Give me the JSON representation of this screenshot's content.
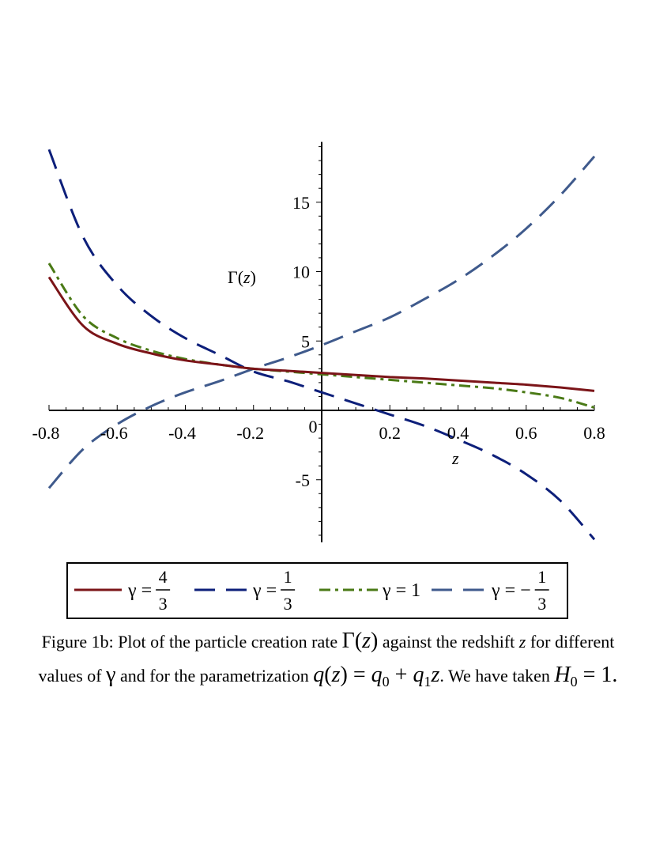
{
  "chart_data": {
    "type": "line",
    "xlabel": "z",
    "ylabel": "Γ(z)",
    "xlim": [
      -0.8,
      0.8
    ],
    "ylim": [
      -9.5,
      19
    ],
    "x_ticks": [
      "-0.8",
      "-0.6",
      "-0.4",
      "-0.2",
      "0",
      "0.2",
      "0.4",
      "0.6",
      "0.8"
    ],
    "y_ticks": [
      "-5",
      "5",
      "10",
      "15"
    ],
    "x": [
      -0.8,
      -0.7,
      -0.6,
      -0.5,
      -0.4,
      -0.3,
      -0.2,
      -0.1,
      0,
      0.1,
      0.2,
      0.3,
      0.4,
      0.5,
      0.6,
      0.7,
      0.8
    ],
    "series": [
      {
        "name": "γ = 4/3",
        "color": "#7b1418",
        "dash": "solid",
        "values": [
          9.6,
          6.1,
          4.8,
          4.1,
          3.6,
          3.3,
          3.0,
          2.85,
          2.7,
          2.55,
          2.4,
          2.3,
          2.15,
          2.0,
          1.85,
          1.65,
          1.4
        ]
      },
      {
        "name": "γ = 1/3",
        "color": "#0d1f7a",
        "dash": "long-dash",
        "values": [
          18.8,
          12.5,
          9.0,
          6.8,
          5.2,
          4.0,
          2.8,
          2.1,
          1.3,
          0.5,
          -0.3,
          -1.1,
          -2.1,
          -3.2,
          -4.6,
          -6.5,
          -9.3
        ]
      },
      {
        "name": "γ = 1",
        "color": "#4a7a16",
        "dash": "dash-dot",
        "values": [
          10.6,
          6.8,
          5.2,
          4.3,
          3.7,
          3.3,
          3.0,
          2.8,
          2.6,
          2.4,
          2.2,
          2.0,
          1.8,
          1.6,
          1.3,
          0.9,
          0.2
        ]
      },
      {
        "name": "γ = -1/3",
        "color": "#3f5a8c",
        "dash": "medium-dash",
        "values": [
          -5.6,
          -2.8,
          -1.0,
          0.3,
          1.3,
          2.1,
          3.0,
          3.8,
          4.7,
          5.7,
          6.7,
          8.0,
          9.4,
          11.1,
          13.1,
          15.5,
          18.3
        ]
      }
    ]
  },
  "legend": {
    "entries": [
      {
        "prefix": "γ = ",
        "num": "4",
        "den": "3"
      },
      {
        "prefix": "γ = ",
        "num": "1",
        "den": "3"
      },
      {
        "prefix": "γ = 1",
        "num": "",
        "den": ""
      },
      {
        "prefix": "γ = −",
        "num": "1",
        "den": "3"
      }
    ]
  },
  "caption": {
    "part1": "Figure 1b: Plot of the particle creation rate ",
    "gamma_fn": "Γ(",
    "z_arg": "z",
    "close": ")",
    "part2": " against the redshift ",
    "z1": "z",
    "part3": " for different values of ",
    "gamma": "γ",
    "part4": " and for the parametrization ",
    "q": "q",
    "q_open": "(",
    "q_z": "z",
    "q_close": ") = ",
    "q0": "q",
    "q0_sub": "0",
    "plus": " + ",
    "q1": "q",
    "q1_sub": "1",
    "q1_z": "z",
    "part5": ". We have taken ",
    "H": "H",
    "H_sub": "0",
    "eq": " = 1."
  }
}
